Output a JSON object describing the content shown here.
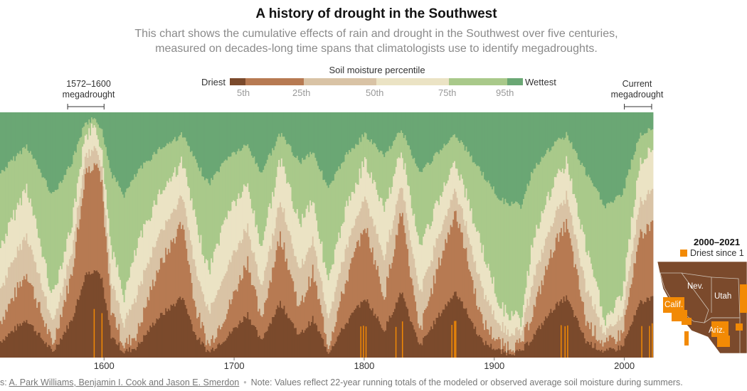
{
  "title": "A history of drought in the Southwest",
  "subtitle_line1": "This chart shows the cumulative effects of rain and drought in the Southwest over five centuries,",
  "subtitle_line2": "measured on decades-long time spans that climatologists use to identify megadroughts.",
  "legend": {
    "title": "Soil moisture percentile",
    "low_label": "Driest",
    "high_label": "Wettest",
    "ticks": [
      "5th",
      "25th",
      "50th",
      "75th",
      "95th"
    ],
    "colors": [
      "#7b4a2c",
      "#b77a52",
      "#d9c3a5",
      "#ebe3c4",
      "#a9c98a",
      "#6aa774"
    ]
  },
  "annotations": {
    "megadrought_1572": [
      "1572–1600",
      "megadrought"
    ],
    "current": [
      "Current",
      "megadrought"
    ]
  },
  "map": {
    "title": "2000–2021",
    "legend_label": "Driest since 1",
    "states": [
      "Nev.",
      "Utah",
      "Calif.",
      "Ariz."
    ],
    "colors": {
      "base": "#7b4a2c",
      "driest": "#f28a05"
    }
  },
  "footer": {
    "source_prefix": "s: ",
    "sources": "A. Park Williams, Benjamin I. Cook and Jason E. Smerdon",
    "separator": "•",
    "note": "Note: Values reflect 22-year running totals of the modeled or observed average soil moisture during summers."
  },
  "chart_data": {
    "type": "area",
    "x_ticks": [
      "1600",
      "1700",
      "1800",
      "1900",
      "2000"
    ],
    "xlim": [
      1520,
      2021
    ],
    "percentile_bands": [
      "<5th",
      "5th–25th",
      "25th–50th",
      "50th–75th",
      "75th–95th",
      ">95th"
    ],
    "series_note": "approximate boundary levels (fraction of column height, bottom=driest) read from the image",
    "x": [
      1520,
      1540,
      1560,
      1575,
      1585,
      1592,
      1598,
      1605,
      1615,
      1625,
      1640,
      1660,
      1670,
      1680,
      1695,
      1710,
      1720,
      1735,
      1750,
      1760,
      1772,
      1785,
      1800,
      1815,
      1828,
      1842,
      1858,
      1870,
      1890,
      1905,
      1920,
      1930,
      1945,
      1955,
      1970,
      1985,
      1998,
      2005,
      2012,
      2021
    ],
    "driest_extent": [
      0.15,
      0.35,
      0.05,
      0.35,
      0.75,
      0.8,
      0.7,
      0.2,
      0.05,
      0.1,
      0.35,
      0.55,
      0.2,
      0.05,
      0.2,
      0.4,
      0.15,
      0.5,
      0.2,
      0.35,
      0.05,
      0.3,
      0.55,
      0.25,
      0.6,
      0.1,
      0.4,
      0.6,
      0.15,
      0.05,
      0.05,
      0.2,
      0.45,
      0.55,
      0.15,
      0.05,
      0.1,
      0.3,
      0.5,
      0.55
    ],
    "wet_extent": [
      0.55,
      0.3,
      0.75,
      0.45,
      0.1,
      0.05,
      0.15,
      0.55,
      0.75,
      0.55,
      0.35,
      0.2,
      0.45,
      0.65,
      0.4,
      0.3,
      0.55,
      0.2,
      0.45,
      0.35,
      0.7,
      0.4,
      0.2,
      0.4,
      0.15,
      0.55,
      0.35,
      0.2,
      0.55,
      0.8,
      0.85,
      0.5,
      0.3,
      0.2,
      0.55,
      0.85,
      0.75,
      0.45,
      0.2,
      0.15
    ]
  }
}
